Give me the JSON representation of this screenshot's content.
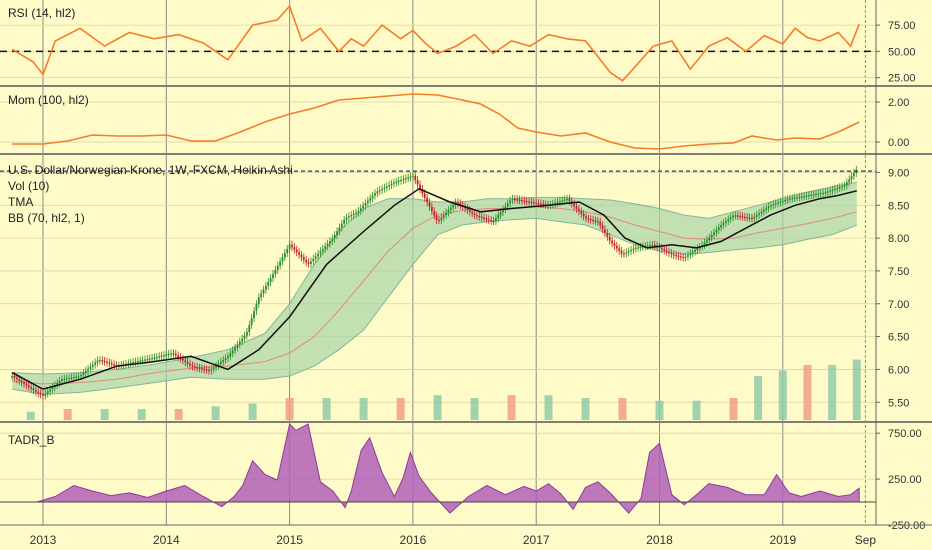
{
  "colors": {
    "background": "#fffbc9",
    "grid": "#8a8a8a",
    "axis_text": "#333333",
    "rsi_line": "#f57c2a",
    "mom_line": "#f57c2a",
    "candle_up": "#2a8c2a",
    "candle_down": "#c2202a",
    "bb_fill": "#a8d4a8",
    "bb_edge": "#7fb69a",
    "bb_mid": "#e08a80",
    "tma_line": "#111111",
    "vol_up": "#8fcaa9",
    "vol_down": "#f19e8a",
    "tadr_fill": "#b060b8",
    "tadr_line": "#8e3a96",
    "dashed": "#111111"
  },
  "panels": {
    "rsi": {
      "label": "RSI (14, hl2)",
      "ticks": [
        "75.00",
        "50.00",
        "25.00"
      ],
      "range": [
        18,
        97
      ],
      "reference_line": 50
    },
    "mom": {
      "label": "Mom (100, hl2)",
      "ticks": [
        "2.00",
        "0.00"
      ],
      "range": [
        -0.5,
        2.7
      ]
    },
    "price": {
      "title": "U.S. Dollar/Norwegian Krone, 1W, FXCM, Heikin Ashi",
      "indicators": [
        "Vol (10)",
        "TMA",
        "BB (70, hl2, 1)"
      ],
      "ticks": [
        "9.00",
        "8.50",
        "8.00",
        "7.50",
        "7.00",
        "6.50",
        "6.00",
        "5.50"
      ],
      "range": [
        5.23,
        9.25
      ],
      "reference_line": 9.02
    },
    "tadr": {
      "label": "TADR_B",
      "ticks": [
        "750.00",
        "250.00",
        "-250.00"
      ],
      "range": [
        -250,
        850
      ],
      "baseline": 0
    }
  },
  "x_axis": {
    "labels": [
      "2013",
      "2014",
      "2015",
      "2016",
      "2017",
      "2018",
      "2019",
      "Sep"
    ]
  },
  "chart_data": [
    {
      "type": "line",
      "name": "RSI (14, hl2)",
      "x": [
        2012.75,
        2012.92,
        2013.0,
        2013.1,
        2013.3,
        2013.5,
        2013.7,
        2013.9,
        2014.1,
        2014.3,
        2014.5,
        2014.7,
        2014.9,
        2015.0,
        2015.1,
        2015.25,
        2015.4,
        2015.5,
        2015.6,
        2015.75,
        2015.9,
        2016.0,
        2016.1,
        2016.2,
        2016.35,
        2016.5,
        2016.65,
        2016.8,
        2016.95,
        2017.1,
        2017.25,
        2017.4,
        2017.5,
        2017.6,
        2017.7,
        2017.8,
        2017.95,
        2018.1,
        2018.25,
        2018.4,
        2018.55,
        2018.7,
        2018.85,
        2019.0,
        2019.1,
        2019.2,
        2019.3,
        2019.45,
        2019.55,
        2019.62
      ],
      "y": [
        52,
        40,
        28,
        60,
        72,
        55,
        68,
        62,
        66,
        58,
        42,
        75,
        80,
        93,
        60,
        72,
        50,
        62,
        55,
        75,
        62,
        70,
        58,
        48,
        55,
        66,
        48,
        60,
        55,
        66,
        62,
        60,
        45,
        30,
        22,
        35,
        55,
        60,
        33,
        55,
        63,
        50,
        65,
        57,
        72,
        63,
        60,
        68,
        55,
        76
      ]
    },
    {
      "type": "line",
      "name": "Mom (100, hl2)",
      "x": [
        2012.75,
        2013.0,
        2013.2,
        2013.4,
        2013.6,
        2013.8,
        2014.0,
        2014.2,
        2014.4,
        2014.6,
        2014.8,
        2015.0,
        2015.2,
        2015.4,
        2015.6,
        2015.8,
        2016.0,
        2016.2,
        2016.4,
        2016.55,
        2016.7,
        2016.85,
        2017.0,
        2017.2,
        2017.4,
        2017.6,
        2017.8,
        2018.0,
        2018.2,
        2018.4,
        2018.6,
        2018.75,
        2018.95,
        2019.1,
        2019.3,
        2019.45,
        2019.62
      ],
      "y": [
        -0.1,
        -0.1,
        0.05,
        0.35,
        0.3,
        0.3,
        0.35,
        0.05,
        0.05,
        0.5,
        1.0,
        1.4,
        1.7,
        2.1,
        2.2,
        2.3,
        2.4,
        2.35,
        2.1,
        1.9,
        1.4,
        0.7,
        0.5,
        0.3,
        0.45,
        0.0,
        -0.3,
        -0.35,
        -0.2,
        -0.1,
        -0.05,
        0.3,
        0.1,
        0.2,
        0.15,
        0.5,
        1.0
      ]
    },
    {
      "type": "line",
      "name": "USD/NOK Heikin Ashi close",
      "x": [
        2012.75,
        2012.95,
        2013.0,
        2013.15,
        2013.3,
        2013.45,
        2013.6,
        2013.75,
        2013.9,
        2014.05,
        2014.2,
        2014.35,
        2014.5,
        2014.65,
        2014.75,
        2014.85,
        2015.0,
        2015.15,
        2015.25,
        2015.35,
        2015.45,
        2015.55,
        2015.7,
        2015.85,
        2016.0,
        2016.1,
        2016.2,
        2016.35,
        2016.5,
        2016.65,
        2016.8,
        2016.95,
        2017.1,
        2017.25,
        2017.4,
        2017.5,
        2017.6,
        2017.7,
        2017.8,
        2017.95,
        2018.1,
        2018.2,
        2018.35,
        2018.5,
        2018.6,
        2018.75,
        2018.9,
        2019.05,
        2019.2,
        2019.35,
        2019.5,
        2019.6
      ],
      "y": [
        5.9,
        5.65,
        5.6,
        5.85,
        5.9,
        6.15,
        6.05,
        6.12,
        6.18,
        6.25,
        6.05,
        5.98,
        6.2,
        6.55,
        7.1,
        7.4,
        7.9,
        7.6,
        7.8,
        8.0,
        8.3,
        8.4,
        8.7,
        8.85,
        8.95,
        8.6,
        8.25,
        8.55,
        8.35,
        8.25,
        8.6,
        8.55,
        8.5,
        8.6,
        8.3,
        8.25,
        7.95,
        7.75,
        7.85,
        7.9,
        7.75,
        7.7,
        7.9,
        8.2,
        8.35,
        8.3,
        8.5,
        8.6,
        8.65,
        8.7,
        8.8,
        9.05
      ]
    },
    {
      "type": "line",
      "name": "TMA",
      "x": [
        2012.75,
        2013.0,
        2013.3,
        2013.6,
        2013.9,
        2014.2,
        2014.5,
        2014.75,
        2015.0,
        2015.3,
        2015.6,
        2015.85,
        2016.05,
        2016.3,
        2016.55,
        2016.8,
        2017.1,
        2017.35,
        2017.55,
        2017.72,
        2017.9,
        2018.1,
        2018.3,
        2018.5,
        2018.7,
        2018.9,
        2019.1,
        2019.3,
        2019.45,
        2019.6
      ],
      "y": [
        5.95,
        5.7,
        5.85,
        6.05,
        6.12,
        6.2,
        6.0,
        6.3,
        6.8,
        7.6,
        8.1,
        8.5,
        8.75,
        8.55,
        8.4,
        8.45,
        8.5,
        8.55,
        8.35,
        8.0,
        7.85,
        7.9,
        7.85,
        7.95,
        8.15,
        8.35,
        8.5,
        8.6,
        8.65,
        8.72
      ]
    },
    {
      "type": "area",
      "name": "BB (70, hl2, 1)",
      "x": [
        2012.75,
        2013.0,
        2013.3,
        2013.6,
        2013.9,
        2014.2,
        2014.5,
        2014.8,
        2015.0,
        2015.2,
        2015.4,
        2015.6,
        2015.8,
        2016.0,
        2016.2,
        2016.4,
        2016.6,
        2016.8,
        2017.0,
        2017.2,
        2017.4,
        2017.6,
        2017.8,
        2018.0,
        2018.2,
        2018.4,
        2018.6,
        2018.8,
        2019.0,
        2019.2,
        2019.4,
        2019.6
      ],
      "upper": [
        5.95,
        5.93,
        5.95,
        6.0,
        6.08,
        6.18,
        6.3,
        6.55,
        7.0,
        7.6,
        8.1,
        8.45,
        8.6,
        8.6,
        8.55,
        8.55,
        8.6,
        8.6,
        8.62,
        8.62,
        8.6,
        8.58,
        8.52,
        8.45,
        8.35,
        8.3,
        8.4,
        8.5,
        8.6,
        8.7,
        8.78,
        8.85
      ],
      "middle": [
        5.82,
        5.78,
        5.8,
        5.85,
        5.95,
        6.02,
        6.05,
        6.12,
        6.25,
        6.5,
        6.9,
        7.35,
        7.8,
        8.15,
        8.35,
        8.42,
        8.45,
        8.45,
        8.48,
        8.45,
        8.4,
        8.32,
        8.2,
        8.1,
        8.0,
        7.98,
        8.0,
        8.08,
        8.15,
        8.22,
        8.3,
        8.4
      ],
      "lower": [
        5.7,
        5.62,
        5.65,
        5.72,
        5.8,
        5.88,
        5.85,
        5.85,
        5.9,
        6.05,
        6.3,
        6.6,
        7.1,
        7.6,
        8.05,
        8.2,
        8.25,
        8.28,
        8.3,
        8.25,
        8.2,
        8.05,
        7.9,
        7.8,
        7.75,
        7.78,
        7.82,
        7.85,
        7.9,
        7.98,
        8.05,
        8.2
      ]
    },
    {
      "type": "area",
      "name": "TADR_B",
      "x": [
        2012.75,
        2012.95,
        2013.1,
        2013.25,
        2013.4,
        2013.55,
        2013.7,
        2013.85,
        2014.0,
        2014.15,
        2014.3,
        2014.45,
        2014.55,
        2014.62,
        2014.7,
        2014.8,
        2014.9,
        2015.0,
        2015.05,
        2015.15,
        2015.25,
        2015.35,
        2015.45,
        2015.5,
        2015.58,
        2015.65,
        2015.75,
        2015.85,
        2015.92,
        2015.98,
        2016.05,
        2016.15,
        2016.3,
        2016.45,
        2016.6,
        2016.75,
        2016.9,
        2017.0,
        2017.1,
        2017.2,
        2017.3,
        2017.4,
        2017.5,
        2017.6,
        2017.75,
        2017.85,
        2017.92,
        2018.0,
        2018.1,
        2018.2,
        2018.3,
        2018.4,
        2018.55,
        2018.7,
        2018.85,
        2018.95,
        2019.05,
        2019.15,
        2019.3,
        2019.45,
        2019.55,
        2019.62
      ],
      "y": [
        0,
        0,
        60,
        180,
        120,
        70,
        100,
        50,
        120,
        180,
        60,
        -50,
        60,
        180,
        450,
        300,
        240,
        850,
        780,
        850,
        220,
        120,
        -60,
        120,
        560,
        700,
        320,
        60,
        260,
        540,
        280,
        100,
        -120,
        60,
        180,
        80,
        170,
        120,
        200,
        90,
        -80,
        160,
        220,
        100,
        -120,
        40,
        540,
        640,
        80,
        -30,
        80,
        200,
        160,
        80,
        80,
        300,
        100,
        60,
        120,
        60,
        80,
        150
      ]
    },
    {
      "type": "bar",
      "name": "Vol (10)",
      "x": [
        2012.9,
        2013.2,
        2013.5,
        2013.8,
        2014.1,
        2014.4,
        2014.7,
        2015.0,
        2015.3,
        2015.6,
        2015.9,
        2016.2,
        2016.5,
        2016.8,
        2017.1,
        2017.4,
        2017.7,
        2018.0,
        2018.3,
        2018.6,
        2018.8,
        2019.0,
        2019.2,
        2019.4,
        2019.6
      ],
      "values": [
        1.5,
        2,
        2,
        2,
        2,
        2.5,
        3,
        4,
        4,
        4,
        4,
        4.5,
        4,
        4.5,
        4.5,
        4,
        4,
        3.5,
        3.5,
        4,
        8,
        9,
        10,
        10,
        11
      ]
    }
  ]
}
